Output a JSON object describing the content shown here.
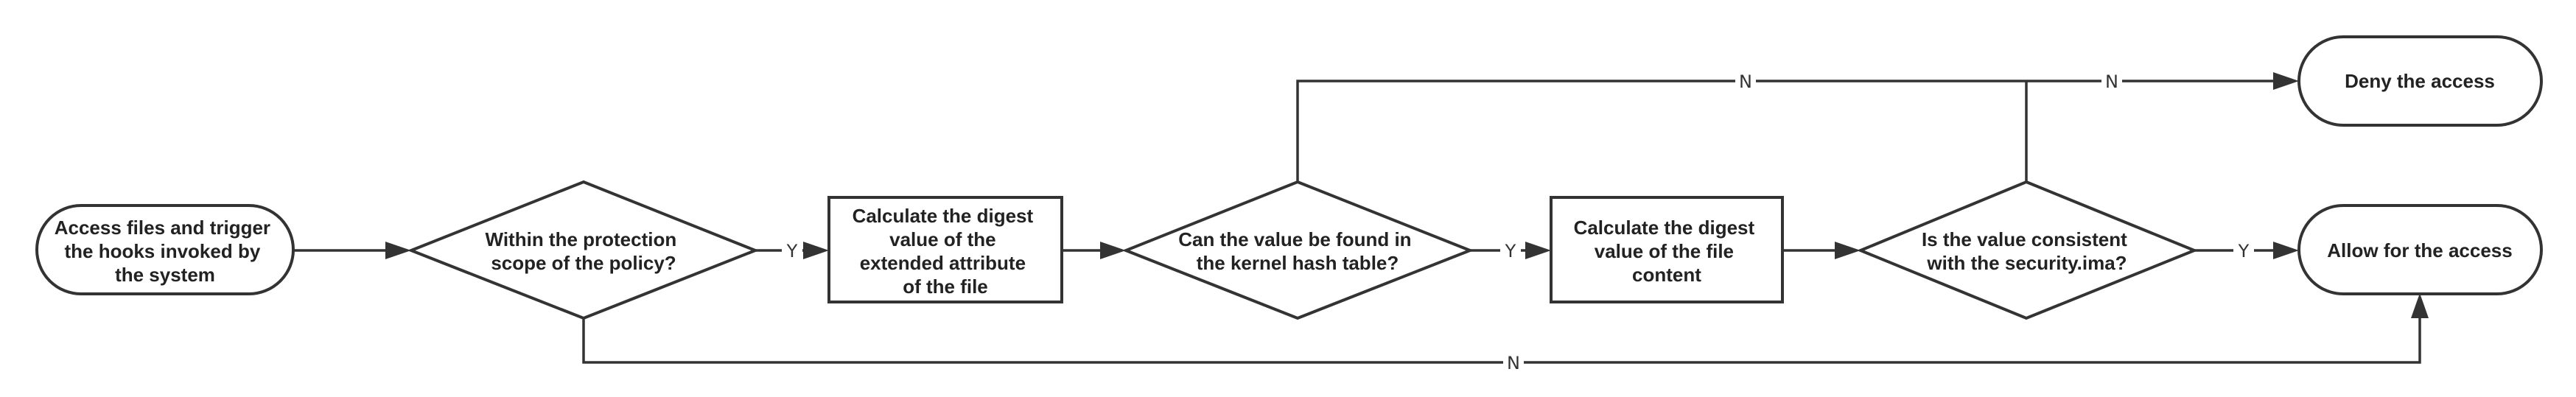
{
  "colors": {
    "stroke": "#333333",
    "text": "#222222",
    "background": "#ffffff"
  },
  "nodes": {
    "start": {
      "shape": "terminal",
      "lines": [
        "Access files and trigger",
        "the hooks invoked by",
        "the system"
      ]
    },
    "scope_check": {
      "shape": "decision",
      "lines": [
        "Within the protection",
        "scope of the policy?"
      ]
    },
    "digest_xattr": {
      "shape": "process",
      "lines": [
        "Calculate the digest",
        "value of the",
        "extended attribute",
        "of the file"
      ]
    },
    "hash_check": {
      "shape": "decision",
      "lines": [
        "Can the value be found in",
        "the kernel hash table?"
      ]
    },
    "digest_content": {
      "shape": "process",
      "lines": [
        "Calculate the digest",
        "value of the file",
        "content"
      ]
    },
    "ima_check": {
      "shape": "decision",
      "lines": [
        "Is the value consistent",
        "with the security.ima?"
      ]
    },
    "deny": {
      "shape": "terminal",
      "lines": [
        "Deny the access"
      ]
    },
    "allow": {
      "shape": "terminal",
      "lines": [
        "Allow for the access"
      ]
    }
  },
  "edges": [
    {
      "from": "start",
      "to": "scope_check",
      "label": ""
    },
    {
      "from": "scope_check",
      "to": "digest_xattr",
      "label": "Y"
    },
    {
      "from": "digest_xattr",
      "to": "hash_check",
      "label": ""
    },
    {
      "from": "hash_check",
      "to": "digest_content",
      "label": "Y"
    },
    {
      "from": "digest_content",
      "to": "ima_check",
      "label": ""
    },
    {
      "from": "ima_check",
      "to": "allow",
      "label": "Y"
    },
    {
      "from": "hash_check",
      "to": "deny",
      "label": "N"
    },
    {
      "from": "ima_check",
      "to": "deny",
      "label": "N"
    },
    {
      "from": "scope_check",
      "to": "allow",
      "label": "N"
    }
  ]
}
